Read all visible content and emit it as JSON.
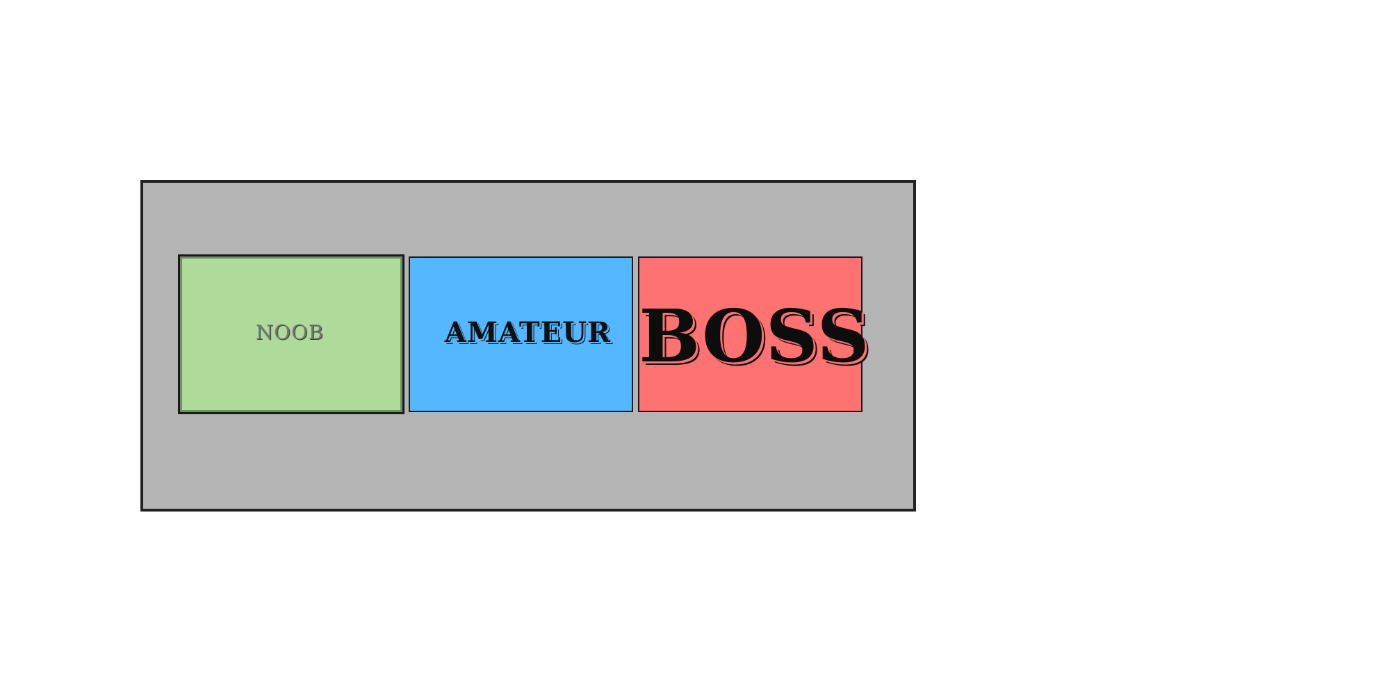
{
  "difficulty_menu": {
    "options": [
      {
        "label": "NOOB",
        "color": "#afdb9a"
      },
      {
        "label": "AMATEUR",
        "color": "#55b7ff"
      },
      {
        "label": "BOSS",
        "color": "#ff7272"
      }
    ],
    "panel_color": "#b4b4b4",
    "selected_index": 0
  }
}
